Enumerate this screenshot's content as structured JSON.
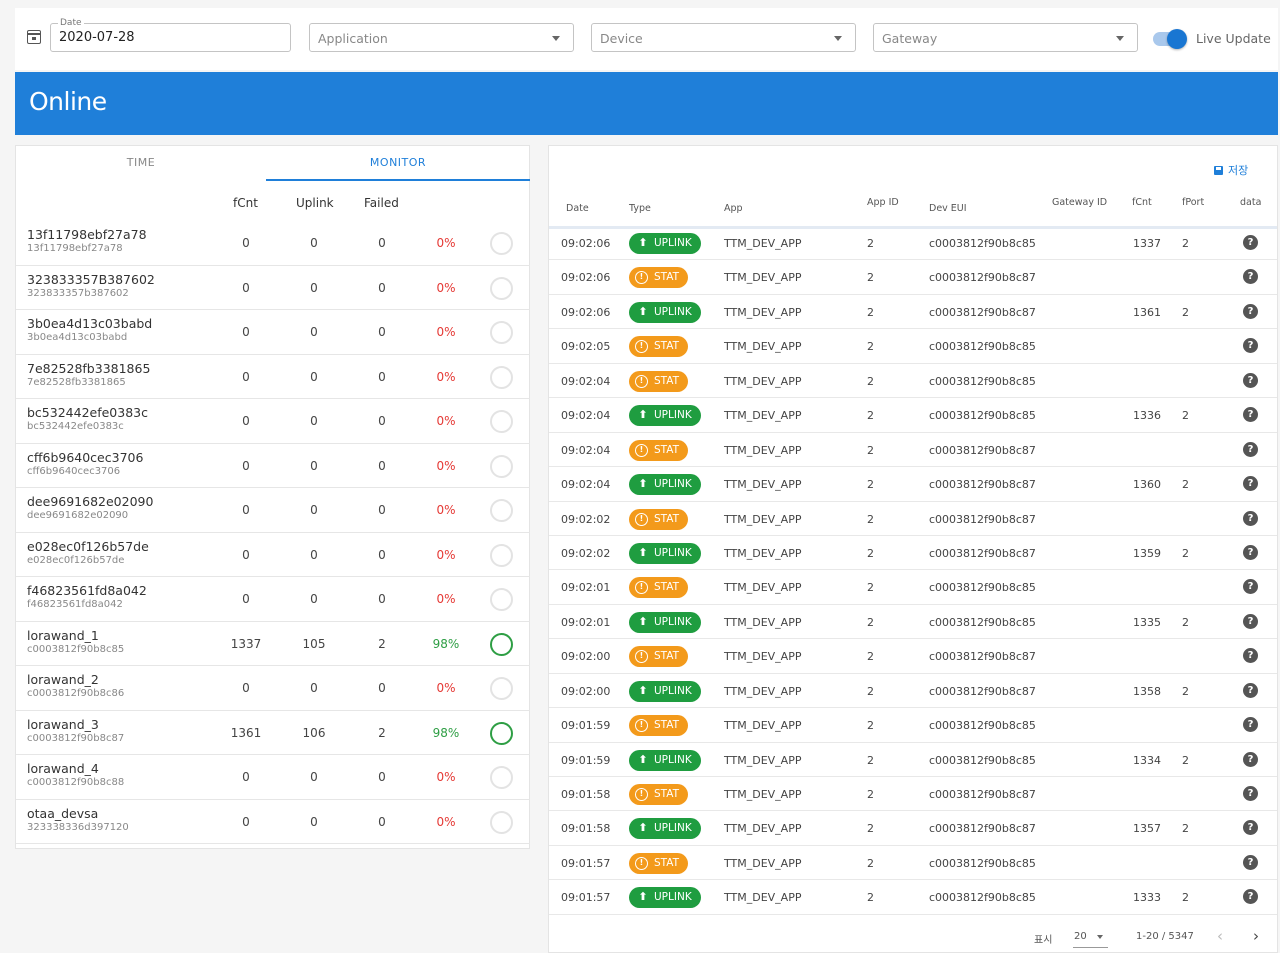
{
  "filters": {
    "date_label": "Date",
    "date_value": "2020-07-28",
    "application_placeholder": "Application",
    "device_placeholder": "Device",
    "gateway_placeholder": "Gateway",
    "live_update_label": "Live Update",
    "live_update_on": true
  },
  "banner": {
    "title": "Online"
  },
  "monitor": {
    "tabs": [
      "TIME",
      "MONITOR"
    ],
    "active_tab": "MONITOR",
    "headers": {
      "fcnt": "fCnt",
      "uplink": "Uplink",
      "failed": "Failed"
    },
    "rows": [
      {
        "name": "13f11798ebf27a78",
        "eui": "13f11798ebf27a78",
        "fcnt": "0",
        "uplink": "0",
        "failed": "0",
        "pct": "0%",
        "active": false
      },
      {
        "name": "323833357B387602",
        "eui": "323833357b387602",
        "fcnt": "0",
        "uplink": "0",
        "failed": "0",
        "pct": "0%",
        "active": false
      },
      {
        "name": "3b0ea4d13c03babd",
        "eui": "3b0ea4d13c03babd",
        "fcnt": "0",
        "uplink": "0",
        "failed": "0",
        "pct": "0%",
        "active": false
      },
      {
        "name": "7e82528fb3381865",
        "eui": "7e82528fb3381865",
        "fcnt": "0",
        "uplink": "0",
        "failed": "0",
        "pct": "0%",
        "active": false
      },
      {
        "name": "bc532442efe0383c",
        "eui": "bc532442efe0383c",
        "fcnt": "0",
        "uplink": "0",
        "failed": "0",
        "pct": "0%",
        "active": false
      },
      {
        "name": "cff6b9640cec3706",
        "eui": "cff6b9640cec3706",
        "fcnt": "0",
        "uplink": "0",
        "failed": "0",
        "pct": "0%",
        "active": false
      },
      {
        "name": "dee9691682e02090",
        "eui": "dee9691682e02090",
        "fcnt": "0",
        "uplink": "0",
        "failed": "0",
        "pct": "0%",
        "active": false
      },
      {
        "name": "e028ec0f126b57de",
        "eui": "e028ec0f126b57de",
        "fcnt": "0",
        "uplink": "0",
        "failed": "0",
        "pct": "0%",
        "active": false
      },
      {
        "name": "f46823561fd8a042",
        "eui": "f46823561fd8a042",
        "fcnt": "0",
        "uplink": "0",
        "failed": "0",
        "pct": "0%",
        "active": false
      },
      {
        "name": "lorawand_1",
        "eui": "c0003812f90b8c85",
        "fcnt": "1337",
        "uplink": "105",
        "failed": "2",
        "pct": "98%",
        "active": true
      },
      {
        "name": "lorawand_2",
        "eui": "c0003812f90b8c86",
        "fcnt": "0",
        "uplink": "0",
        "failed": "0",
        "pct": "0%",
        "active": false
      },
      {
        "name": "lorawand_3",
        "eui": "c0003812f90b8c87",
        "fcnt": "1361",
        "uplink": "106",
        "failed": "2",
        "pct": "98%",
        "active": true
      },
      {
        "name": "lorawand_4",
        "eui": "c0003812f90b8c88",
        "fcnt": "0",
        "uplink": "0",
        "failed": "0",
        "pct": "0%",
        "active": false
      },
      {
        "name": "otaa_devsa",
        "eui": "323338336d397120",
        "fcnt": "0",
        "uplink": "0",
        "failed": "0",
        "pct": "0%",
        "active": false
      }
    ]
  },
  "log": {
    "save_label": "저장",
    "headers": {
      "date": "Date",
      "type": "Type",
      "app": "App",
      "app_id": "App ID",
      "dev_eui": "Dev EUI",
      "gateway_id": "Gateway ID",
      "fcnt": "fCnt",
      "fport": "fPort",
      "data": "data"
    },
    "rows": [
      {
        "date": "09:02:06",
        "type": "UPLINK",
        "app": "TTM_DEV_APP",
        "app_id": "2",
        "dev_eui": "c0003812f90b8c85",
        "fcnt": "1337",
        "fport": "2"
      },
      {
        "date": "09:02:06",
        "type": "STAT",
        "app": "TTM_DEV_APP",
        "app_id": "2",
        "dev_eui": "c0003812f90b8c87",
        "fcnt": "",
        "fport": ""
      },
      {
        "date": "09:02:06",
        "type": "UPLINK",
        "app": "TTM_DEV_APP",
        "app_id": "2",
        "dev_eui": "c0003812f90b8c87",
        "fcnt": "1361",
        "fport": "2"
      },
      {
        "date": "09:02:05",
        "type": "STAT",
        "app": "TTM_DEV_APP",
        "app_id": "2",
        "dev_eui": "c0003812f90b8c85",
        "fcnt": "",
        "fport": ""
      },
      {
        "date": "09:02:04",
        "type": "STAT",
        "app": "TTM_DEV_APP",
        "app_id": "2",
        "dev_eui": "c0003812f90b8c85",
        "fcnt": "",
        "fport": ""
      },
      {
        "date": "09:02:04",
        "type": "UPLINK",
        "app": "TTM_DEV_APP",
        "app_id": "2",
        "dev_eui": "c0003812f90b8c85",
        "fcnt": "1336",
        "fport": "2"
      },
      {
        "date": "09:02:04",
        "type": "STAT",
        "app": "TTM_DEV_APP",
        "app_id": "2",
        "dev_eui": "c0003812f90b8c87",
        "fcnt": "",
        "fport": ""
      },
      {
        "date": "09:02:04",
        "type": "UPLINK",
        "app": "TTM_DEV_APP",
        "app_id": "2",
        "dev_eui": "c0003812f90b8c87",
        "fcnt": "1360",
        "fport": "2"
      },
      {
        "date": "09:02:02",
        "type": "STAT",
        "app": "TTM_DEV_APP",
        "app_id": "2",
        "dev_eui": "c0003812f90b8c87",
        "fcnt": "",
        "fport": ""
      },
      {
        "date": "09:02:02",
        "type": "UPLINK",
        "app": "TTM_DEV_APP",
        "app_id": "2",
        "dev_eui": "c0003812f90b8c87",
        "fcnt": "1359",
        "fport": "2"
      },
      {
        "date": "09:02:01",
        "type": "STAT",
        "app": "TTM_DEV_APP",
        "app_id": "2",
        "dev_eui": "c0003812f90b8c85",
        "fcnt": "",
        "fport": ""
      },
      {
        "date": "09:02:01",
        "type": "UPLINK",
        "app": "TTM_DEV_APP",
        "app_id": "2",
        "dev_eui": "c0003812f90b8c85",
        "fcnt": "1335",
        "fport": "2"
      },
      {
        "date": "09:02:00",
        "type": "STAT",
        "app": "TTM_DEV_APP",
        "app_id": "2",
        "dev_eui": "c0003812f90b8c87",
        "fcnt": "",
        "fport": ""
      },
      {
        "date": "09:02:00",
        "type": "UPLINK",
        "app": "TTM_DEV_APP",
        "app_id": "2",
        "dev_eui": "c0003812f90b8c87",
        "fcnt": "1358",
        "fport": "2"
      },
      {
        "date": "09:01:59",
        "type": "STAT",
        "app": "TTM_DEV_APP",
        "app_id": "2",
        "dev_eui": "c0003812f90b8c85",
        "fcnt": "",
        "fport": ""
      },
      {
        "date": "09:01:59",
        "type": "UPLINK",
        "app": "TTM_DEV_APP",
        "app_id": "2",
        "dev_eui": "c0003812f90b8c85",
        "fcnt": "1334",
        "fport": "2"
      },
      {
        "date": "09:01:58",
        "type": "STAT",
        "app": "TTM_DEV_APP",
        "app_id": "2",
        "dev_eui": "c0003812f90b8c87",
        "fcnt": "",
        "fport": ""
      },
      {
        "date": "09:01:58",
        "type": "UPLINK",
        "app": "TTM_DEV_APP",
        "app_id": "2",
        "dev_eui": "c0003812f90b8c87",
        "fcnt": "1357",
        "fport": "2"
      },
      {
        "date": "09:01:57",
        "type": "STAT",
        "app": "TTM_DEV_APP",
        "app_id": "2",
        "dev_eui": "c0003812f90b8c85",
        "fcnt": "",
        "fport": ""
      },
      {
        "date": "09:01:57",
        "type": "UPLINK",
        "app": "TTM_DEV_APP",
        "app_id": "2",
        "dev_eui": "c0003812f90b8c85",
        "fcnt": "1333",
        "fport": "2"
      }
    ],
    "pagination": {
      "rows_label": "표시",
      "page_size": "20",
      "range": "1-20 / 5347"
    }
  },
  "colors": {
    "primary": "#1f7fd9",
    "uplink": "#1f9d40",
    "stat": "#f39a1b",
    "fail": "#e53935",
    "ok": "#2e9e44"
  },
  "icons": {
    "uplink_chip": "upload-icon",
    "stat_chip": "stat-icon",
    "data_cell": "help-icon",
    "date_field": "calendar-icon",
    "save": "save-icon"
  }
}
